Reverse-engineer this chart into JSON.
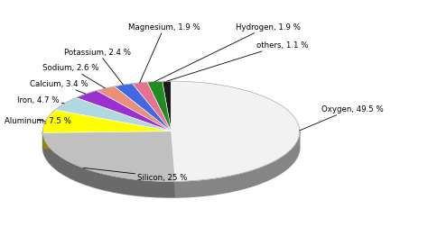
{
  "elements": [
    {
      "name": "Oxygen",
      "value": 49.5,
      "color": "#f2f2f2"
    },
    {
      "name": "Silicon",
      "value": 25.0,
      "color": "#c0c0c0"
    },
    {
      "name": "Aluminum",
      "value": 7.5,
      "color": "#ffff00"
    },
    {
      "name": "Iron",
      "value": 4.7,
      "color": "#b0d8e0"
    },
    {
      "name": "Calcium",
      "value": 3.4,
      "color": "#9b30d0"
    },
    {
      "name": "Sodium",
      "value": 2.6,
      "color": "#e8907a"
    },
    {
      "name": "Potassium",
      "value": 2.4,
      "color": "#4169e1"
    },
    {
      "name": "Magnesium",
      "value": 1.9,
      "color": "#e87090"
    },
    {
      "name": "Hydrogen",
      "value": 1.9,
      "color": "#228b22"
    },
    {
      "name": "others",
      "value": 1.1,
      "color": "#1a1a1a"
    }
  ],
  "figsize": [
    4.74,
    2.53
  ],
  "dpi": 100,
  "startangle": 90,
  "background_color": "#ffffff"
}
